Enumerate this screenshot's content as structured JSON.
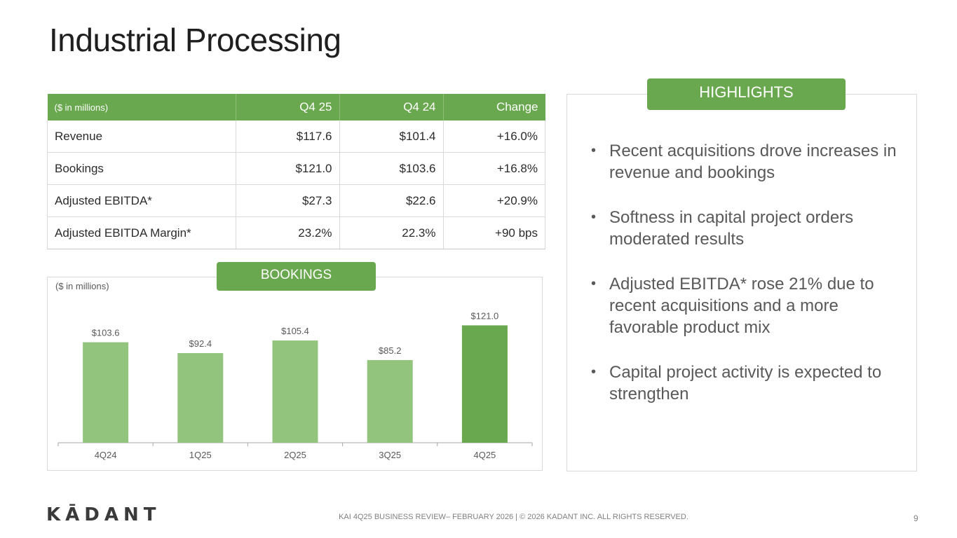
{
  "slide": {
    "title": "Industrial Processing",
    "page_number": "9",
    "footer": "KAI 4Q25 BUSINESS REVIEW– FEBRUARY 2026 | © 2026 KADANT INC. ALL RIGHTS RESERVED.",
    "logo": "KĀDANT"
  },
  "table": {
    "headers": [
      "($ in millions)",
      "Q4 25",
      "Q4 24",
      "Change"
    ],
    "rows": [
      [
        "Revenue",
        "$117.6",
        "$101.4",
        "+16.0%"
      ],
      [
        "Bookings",
        "$121.0",
        "$103.6",
        "+16.8%"
      ],
      [
        "Adjusted EBITDA*",
        "$27.3",
        "$22.6",
        "+20.9%"
      ],
      [
        "Adjusted EBITDA Margin*",
        "23.2%",
        "22.3%",
        "+90 bps"
      ]
    ]
  },
  "bookings": {
    "pill": "BOOKINGS",
    "units": "($ in millions)"
  },
  "highlights": {
    "pill": "HIGHLIGHTS",
    "items": [
      "Recent acquisitions drove increases in revenue and bookings",
      "Softness in capital project orders moderated results",
      "Adjusted EBITDA* rose 21% due to recent acquisitions and a more favorable product mix",
      "Capital project activity is expected to strengthen"
    ]
  },
  "colors": {
    "accent": "#6aa84f",
    "bar_light": "#93c47d",
    "bar_dark": "#6aa84f"
  },
  "chart_data": {
    "type": "bar",
    "categories": [
      "4Q24",
      "1Q25",
      "2Q25",
      "3Q25",
      "4Q25"
    ],
    "values": [
      103.6,
      92.4,
      105.4,
      85.2,
      121.0
    ],
    "value_labels": [
      "$103.6",
      "$92.4",
      "$105.4",
      "$85.2",
      "$121.0"
    ],
    "title": "",
    "ylabel": "",
    "xlabel": "",
    "ylim": [
      0,
      130
    ],
    "grid": false,
    "highlight_last": true
  }
}
